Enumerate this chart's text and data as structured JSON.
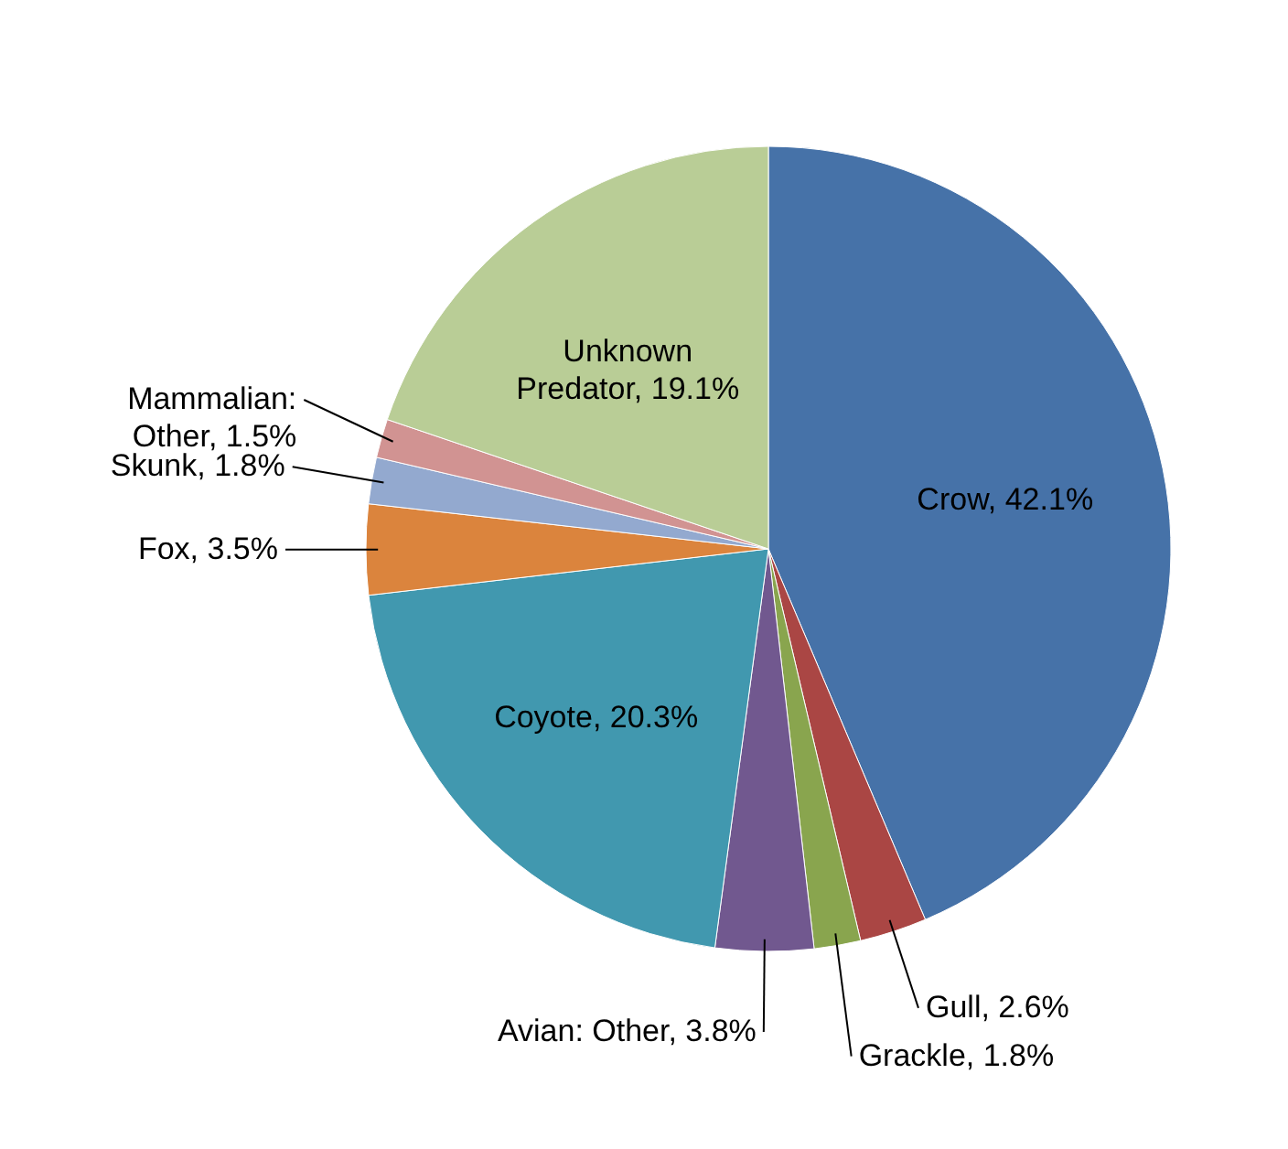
{
  "chart_data": {
    "type": "pie",
    "categories": [
      "Crow",
      "Gull",
      "Grackle",
      "Avian: Other",
      "Coyote",
      "Fox",
      "Skunk",
      "Mammalian: Other",
      "Unknown Predator"
    ],
    "values": [
      42.1,
      2.6,
      1.8,
      3.8,
      20.3,
      3.5,
      1.8,
      1.5,
      19.1
    ],
    "colors": [
      "#4672a8",
      "#aa4644",
      "#89a54e",
      "#71588f",
      "#4198af",
      "#db843d",
      "#93a9cf",
      "#d19392",
      "#b9cd96"
    ],
    "value_labels": [
      "42.1%",
      "2.6%",
      "1.8%",
      "3.8%",
      "20.3%",
      "3.5%",
      "1.8%",
      "1.5%",
      "19.1%"
    ]
  }
}
